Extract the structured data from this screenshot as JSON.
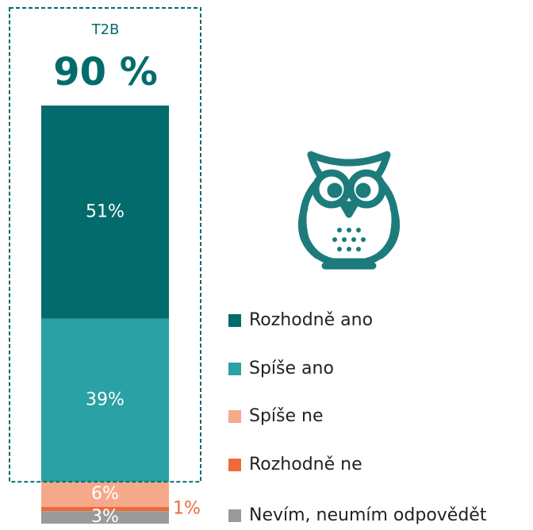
{
  "chart_data": {
    "type": "bar",
    "stacked": true,
    "categories": [
      null
    ],
    "ylim": [
      0,
      100
    ],
    "t2b": {
      "label": "T2B",
      "value": 90,
      "value_label": "90 %"
    },
    "series": [
      {
        "name": "Rozhodně ano",
        "color": "#036b6b",
        "values": [
          51
        ],
        "value_labels": [
          "51%"
        ]
      },
      {
        "name": "Spíše ano",
        "color": "#2aa1a4",
        "values": [
          39
        ],
        "value_labels": [
          "39%"
        ]
      },
      {
        "name": "Spíše ne",
        "color": "#f5a98b",
        "values": [
          6
        ],
        "value_labels": [
          "6%"
        ]
      },
      {
        "name": "Rozhodně ne",
        "color": "#ef6a3a",
        "values": [
          1
        ],
        "value_labels": [
          "1%"
        ]
      },
      {
        "name": "Nevím, neumím odpovědět",
        "color": "#9a9a9a",
        "values": [
          3
        ],
        "value_labels": [
          "3%"
        ]
      }
    ]
  }
}
